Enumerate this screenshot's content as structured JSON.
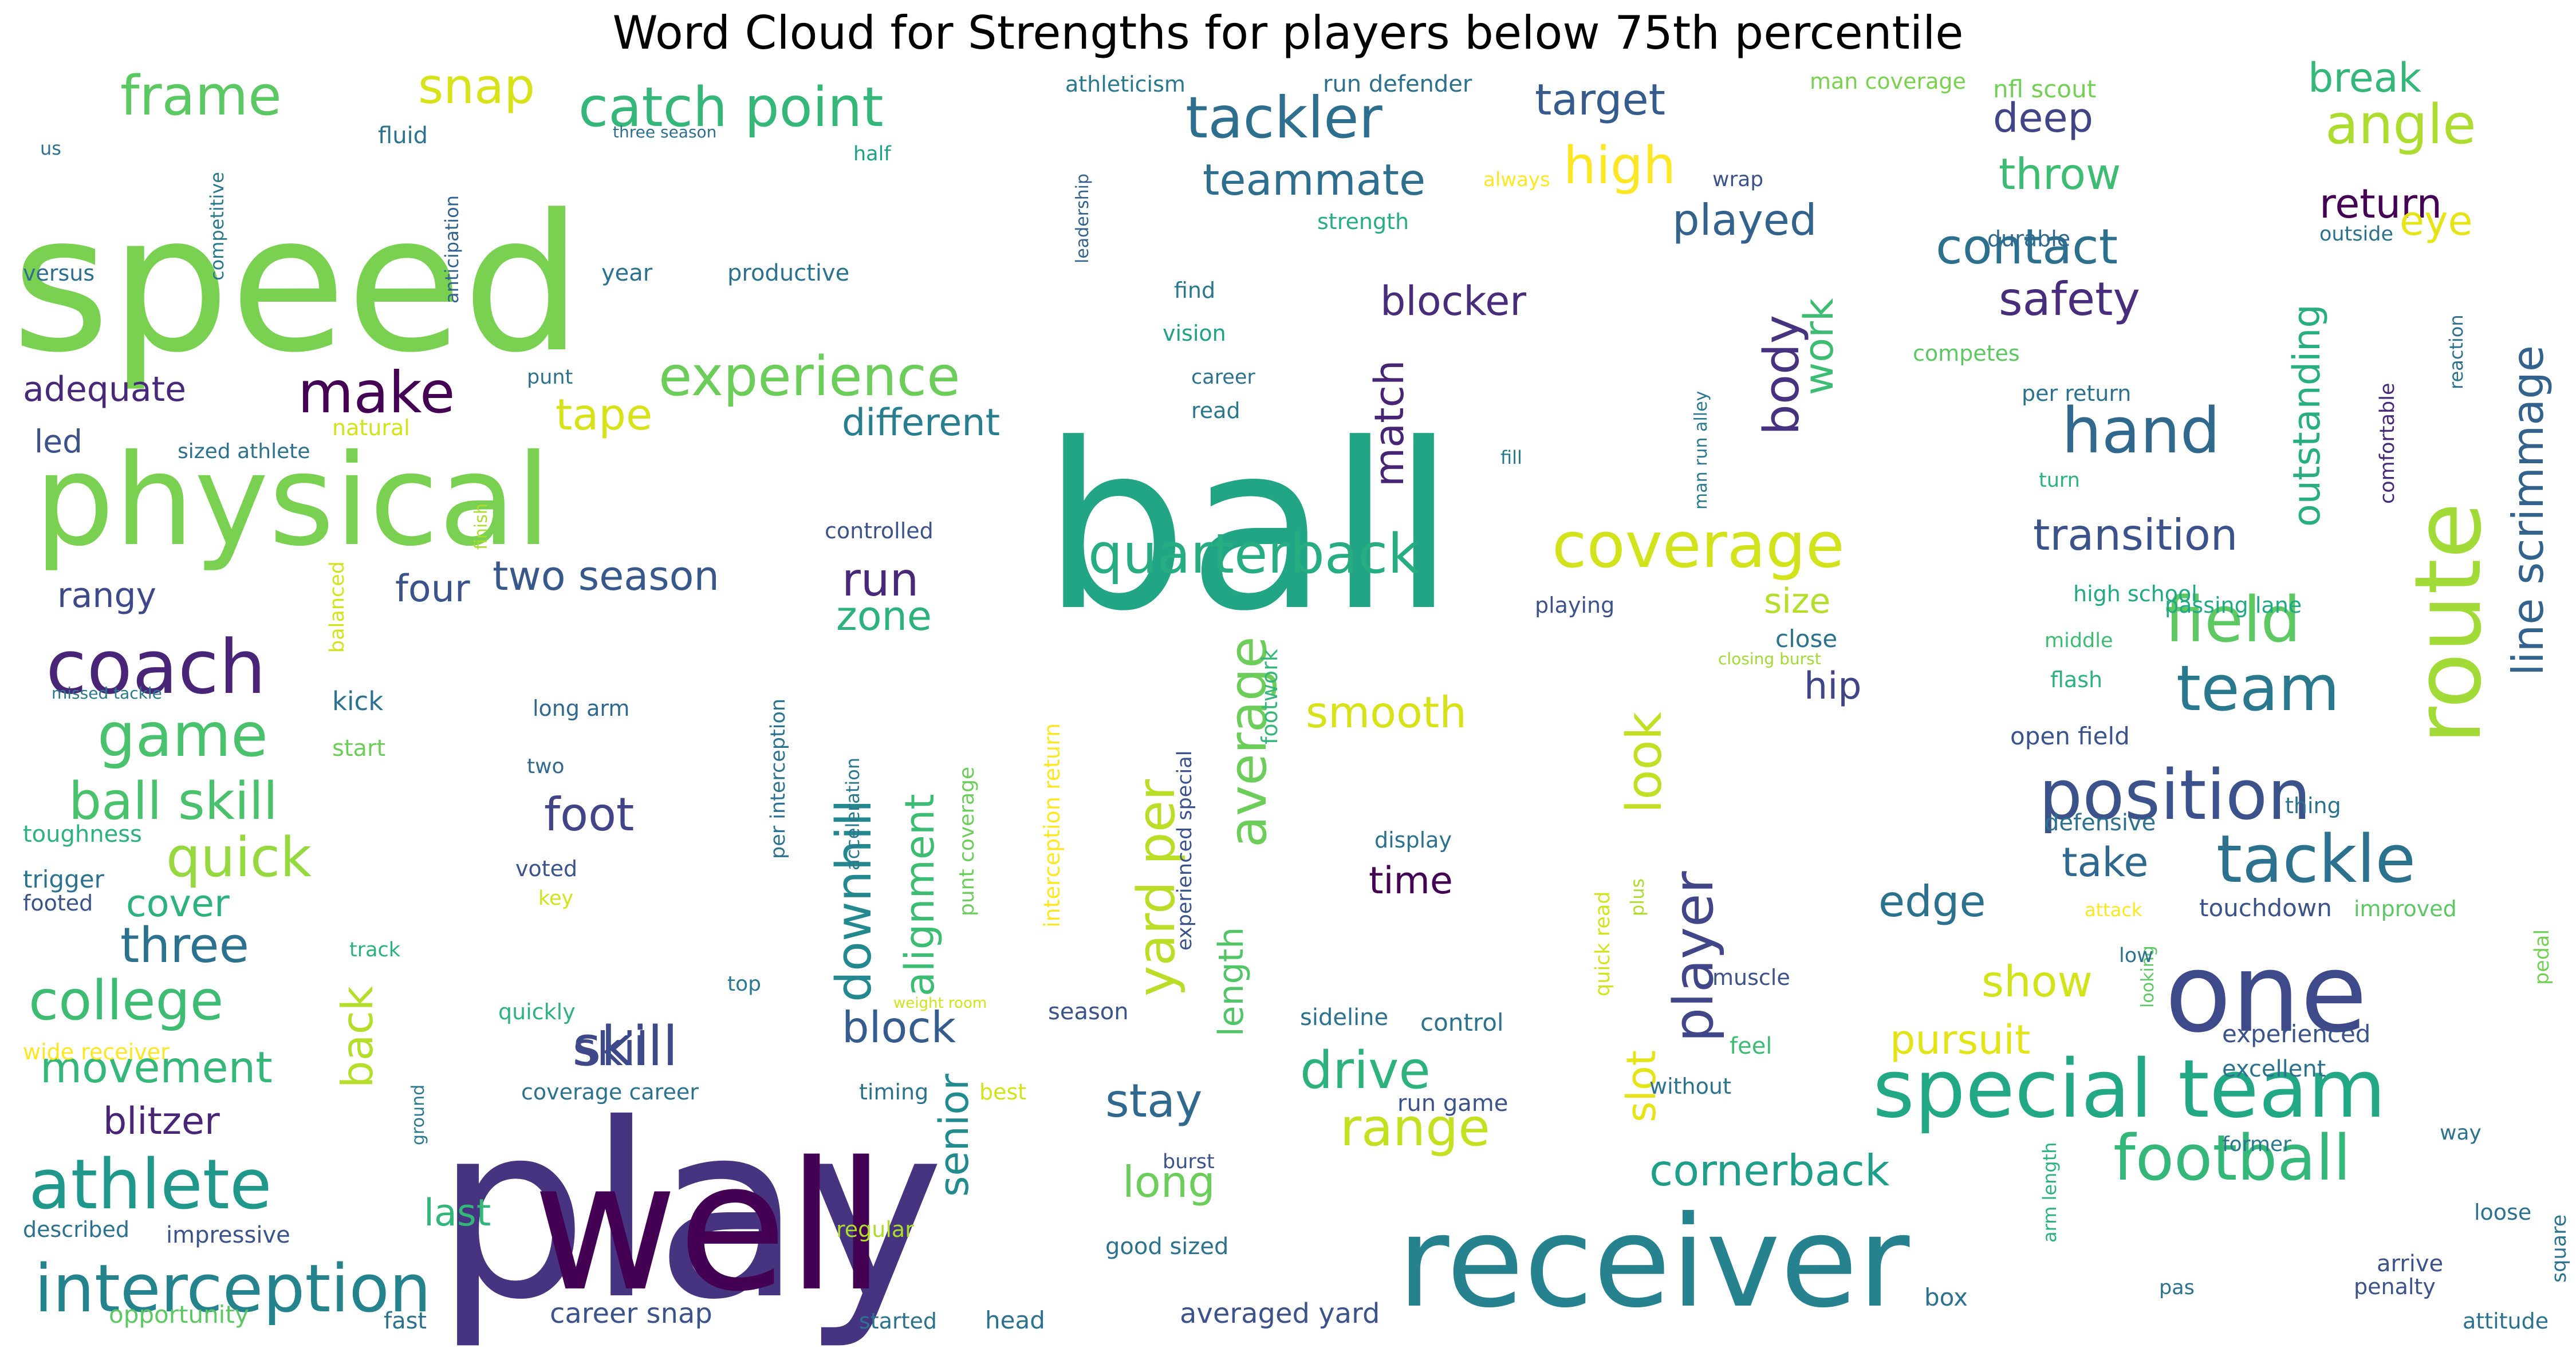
{
  "chart_data": {
    "type": "wordcloud",
    "title": "Word Cloud for Strengths for players below 75th percentile",
    "words": [
      {
        "text": "play",
        "size": 420,
        "color": "#463480"
      },
      {
        "text": "ball",
        "size": 400,
        "color": "#21A585"
      },
      {
        "text": "speed",
        "size": 330,
        "color": "#7AD151"
      },
      {
        "text": "well",
        "size": 310,
        "color": "#440154"
      },
      {
        "text": "receiver",
        "size": 220,
        "color": "#26828E"
      },
      {
        "text": "physical",
        "size": 220,
        "color": "#7AD151"
      },
      {
        "text": "one",
        "size": 190,
        "color": "#3E4A89"
      },
      {
        "text": "route",
        "size": 160,
        "color": "#A2DA37"
      },
      {
        "text": "special team",
        "size": 140,
        "color": "#22A884"
      },
      {
        "text": "coach",
        "size": 130,
        "color": "#482576"
      },
      {
        "text": "athlete",
        "size": 120,
        "color": "#1F988B"
      },
      {
        "text": "interception",
        "size": 115,
        "color": "#25838E"
      },
      {
        "text": "position",
        "size": 120,
        "color": "#3B528B"
      },
      {
        "text": "tackle",
        "size": 115,
        "color": "#2C728E"
      },
      {
        "text": "hand",
        "size": 110,
        "color": "#31688E"
      },
      {
        "text": "team",
        "size": 110,
        "color": "#2A788E"
      },
      {
        "text": "coverage",
        "size": 110,
        "color": "#D2E21B"
      },
      {
        "text": "football",
        "size": 110,
        "color": "#35B779"
      },
      {
        "text": "field",
        "size": 110,
        "color": "#5EC962"
      },
      {
        "text": "game",
        "size": 105,
        "color": "#4AC16D"
      },
      {
        "text": "tackler",
        "size": 100,
        "color": "#2E6E8E"
      },
      {
        "text": "make",
        "size": 100,
        "color": "#440154"
      },
      {
        "text": "quarterback",
        "size": 95,
        "color": "#27AD81"
      },
      {
        "text": "skill",
        "size": 95,
        "color": "#3E4989"
      },
      {
        "text": "experience",
        "size": 95,
        "color": "#6CCD5A"
      },
      {
        "text": "quick",
        "size": 95,
        "color": "#95D840"
      },
      {
        "text": "college",
        "size": 95,
        "color": "#3FBC73"
      },
      {
        "text": "catch point",
        "size": 95,
        "color": "#35B779"
      },
      {
        "text": "frame",
        "size": 95,
        "color": "#5CC863"
      },
      {
        "text": "angle",
        "size": 95,
        "color": "#ADDC30"
      },
      {
        "text": "player",
        "size": 95,
        "color": "#404688"
      },
      {
        "text": "high",
        "size": 90,
        "color": "#FDE725"
      },
      {
        "text": "ball skill",
        "size": 90,
        "color": "#4AC16D"
      },
      {
        "text": "drive",
        "size": 90,
        "color": "#2DB27D"
      },
      {
        "text": "range",
        "size": 90,
        "color": "#C5E021"
      },
      {
        "text": "average",
        "size": 90,
        "color": "#6CCD5A"
      },
      {
        "text": "yard per",
        "size": 90,
        "color": "#BADE28"
      },
      {
        "text": "body",
        "size": 85,
        "color": "#46327E"
      },
      {
        "text": "contact",
        "size": 85,
        "color": "#2D708E"
      },
      {
        "text": "three",
        "size": 85,
        "color": "#2C728E"
      },
      {
        "text": "look",
        "size": 85,
        "color": "#C2DF23"
      },
      {
        "text": "snap",
        "size": 85,
        "color": "#D8E219"
      },
      {
        "text": "downhill",
        "size": 85,
        "color": "#23898E"
      },
      {
        "text": "foot",
        "size": 80,
        "color": "#414487"
      },
      {
        "text": "run",
        "size": 80,
        "color": "#482878"
      },
      {
        "text": "stay",
        "size": 80,
        "color": "#31688E"
      },
      {
        "text": "skill",
        "size": 80,
        "color": "#3E4989"
      },
      {
        "text": "safety",
        "size": 80,
        "color": "#472D7B"
      },
      {
        "text": "target",
        "size": 75,
        "color": "#365C8D"
      },
      {
        "text": "throw",
        "size": 75,
        "color": "#3FBC73"
      },
      {
        "text": "line scrimmage",
        "size": 75,
        "color": "#33638D"
      },
      {
        "text": "teammate",
        "size": 75,
        "color": "#2E6E8E"
      },
      {
        "text": "movement",
        "size": 75,
        "color": "#35B779"
      },
      {
        "text": "smooth",
        "size": 75,
        "color": "#D8E219"
      },
      {
        "text": "long",
        "size": 75,
        "color": "#6CCD5A"
      },
      {
        "text": "show",
        "size": 75,
        "color": "#D2E21B"
      },
      {
        "text": "edge",
        "size": 75,
        "color": "#2C728E"
      },
      {
        "text": "played",
        "size": 75,
        "color": "#33638D"
      },
      {
        "text": "back",
        "size": 75,
        "color": "#B5DE2B"
      },
      {
        "text": "tape",
        "size": 75,
        "color": "#D8E219"
      },
      {
        "text": "transition",
        "size": 75,
        "color": "#3B528B"
      },
      {
        "text": "cornerback",
        "size": 75,
        "color": "#1F9E89"
      },
      {
        "text": "block",
        "size": 75,
        "color": "#365C8D"
      },
      {
        "text": "alignment",
        "size": 70,
        "color": "#3DBC74"
      },
      {
        "text": "blocker",
        "size": 70,
        "color": "#472D7B"
      },
      {
        "text": "senior",
        "size": 70,
        "color": "#238A8D"
      },
      {
        "text": "two season",
        "size": 70,
        "color": "#38588C"
      },
      {
        "text": "zone",
        "size": 70,
        "color": "#2DB27D"
      },
      {
        "text": "pursuit",
        "size": 70,
        "color": "#E2E418"
      },
      {
        "text": "return",
        "size": 70,
        "color": "#440154"
      },
      {
        "text": "take",
        "size": 70,
        "color": "#31688E"
      },
      {
        "text": "deep",
        "size": 70,
        "color": "#414487"
      },
      {
        "text": "break",
        "size": 70,
        "color": "#35B779"
      },
      {
        "text": "match",
        "size": 70,
        "color": "#482475"
      },
      {
        "text": "slot",
        "size": 70,
        "color": "#E5E419"
      },
      {
        "text": "work",
        "size": 70,
        "color": "#3FBC73"
      },
      {
        "text": "eye",
        "size": 70,
        "color": "#E5E419"
      },
      {
        "text": "outstanding",
        "size": 65,
        "color": "#29AF7F"
      },
      {
        "text": "different",
        "size": 65,
        "color": "#287D8E"
      },
      {
        "text": "blitzer",
        "size": 65,
        "color": "#482576"
      },
      {
        "text": "four",
        "size": 65,
        "color": "#3B528B"
      },
      {
        "text": "cover",
        "size": 65,
        "color": "#2DB27D"
      },
      {
        "text": "hip",
        "size": 65,
        "color": "#414487"
      },
      {
        "text": "time",
        "size": 65,
        "color": "#440154"
      },
      {
        "text": "length",
        "size": 60,
        "color": "#52C569"
      },
      {
        "text": "last",
        "size": 65,
        "color": "#32B67A"
      },
      {
        "text": "rangy",
        "size": 60,
        "color": "#3E4989"
      },
      {
        "text": "adequate",
        "size": 60,
        "color": "#482878"
      },
      {
        "text": "size",
        "size": 60,
        "color": "#B5DE2B"
      },
      {
        "text": "led",
        "size": 55,
        "color": "#3B528B"
      },
      {
        "text": "kick",
        "size": 45,
        "color": "#2C728E"
      },
      {
        "text": "start",
        "size": 40,
        "color": "#6CCD5A"
      },
      {
        "text": "athleticism",
        "size": 38,
        "color": "#2A788E"
      },
      {
        "text": "run defender",
        "size": 40,
        "color": "#2D708E"
      },
      {
        "text": "man coverage",
        "size": 38,
        "color": "#7AD151"
      },
      {
        "text": "nfl scout",
        "size": 42,
        "color": "#73D056"
      },
      {
        "text": "fluid",
        "size": 40,
        "color": "#2C728E"
      },
      {
        "text": "three season",
        "size": 28,
        "color": "#2E6E8E"
      },
      {
        "text": "us",
        "size": 32,
        "color": "#2C728E"
      },
      {
        "text": "half",
        "size": 35,
        "color": "#1FA187"
      },
      {
        "text": "always",
        "size": 34,
        "color": "#FDE725"
      },
      {
        "text": "wrap",
        "size": 36,
        "color": "#3B528B"
      },
      {
        "text": "durable",
        "size": 38,
        "color": "#31688E"
      },
      {
        "text": "strength",
        "size": 38,
        "color": "#27AD81"
      },
      {
        "text": "anticipation",
        "size": 32,
        "color": "#33638D"
      },
      {
        "text": "leadership",
        "size": 30,
        "color": "#33638D"
      },
      {
        "text": "competitive",
        "size": 32,
        "color": "#2A788E"
      },
      {
        "text": "versus",
        "size": 38,
        "color": "#2E6E8E"
      },
      {
        "text": "year",
        "size": 40,
        "color": "#2C728E"
      },
      {
        "text": "productive",
        "size": 40,
        "color": "#2C728E"
      },
      {
        "text": "find",
        "size": 38,
        "color": "#2A788E"
      },
      {
        "text": "vision",
        "size": 38,
        "color": "#1FA187"
      },
      {
        "text": "career",
        "size": 35,
        "color": "#2C728E"
      },
      {
        "text": "read",
        "size": 38,
        "color": "#2A788E"
      },
      {
        "text": "punt",
        "size": 35,
        "color": "#2C728E"
      },
      {
        "text": "natural",
        "size": 38,
        "color": "#D2E21B"
      },
      {
        "text": "sized athlete",
        "size": 36,
        "color": "#2C728E"
      },
      {
        "text": "finish",
        "size": 30,
        "color": "#ADDC30"
      },
      {
        "text": "man run alley",
        "size": 30,
        "color": "#2A788E"
      },
      {
        "text": "fill",
        "size": 32,
        "color": "#2A788E"
      },
      {
        "text": "competes",
        "size": 38,
        "color": "#5DC863"
      },
      {
        "text": "per return",
        "size": 38,
        "color": "#2C728E"
      },
      {
        "text": "comfortable",
        "size": 35,
        "color": "#482878"
      },
      {
        "text": "reaction",
        "size": 32,
        "color": "#2D708E"
      },
      {
        "text": "outside",
        "size": 35,
        "color": "#2C728E"
      },
      {
        "text": "turn",
        "size": 35,
        "color": "#2DB27D"
      },
      {
        "text": "controlled",
        "size": 38,
        "color": "#3B528B"
      },
      {
        "text": "balanced",
        "size": 35,
        "color": "#D2E21B"
      },
      {
        "text": "playing",
        "size": 38,
        "color": "#3B528B"
      },
      {
        "text": "high school",
        "size": 38,
        "color": "#22A884"
      },
      {
        "text": "middle",
        "size": 35,
        "color": "#3FBC73"
      },
      {
        "text": "close",
        "size": 42,
        "color": "#2C728E"
      },
      {
        "text": "closing burst",
        "size": 28,
        "color": "#A2DA37"
      },
      {
        "text": "passing lane",
        "size": 38,
        "color": "#22A884"
      },
      {
        "text": "missed tackle",
        "size": 28,
        "color": "#2A788E"
      },
      {
        "text": "long arm",
        "size": 38,
        "color": "#31688E"
      },
      {
        "text": "two",
        "size": 36,
        "color": "#31688E"
      },
      {
        "text": "voted",
        "size": 38,
        "color": "#3B528B"
      },
      {
        "text": "key",
        "size": 35,
        "color": "#D2E21B"
      },
      {
        "text": "display",
        "size": 38,
        "color": "#2C728E"
      },
      {
        "text": "flash",
        "size": 38,
        "color": "#2DB27D"
      },
      {
        "text": "open field",
        "size": 42,
        "color": "#3B528B"
      },
      {
        "text": "thing",
        "size": 38,
        "color": "#2C728E"
      },
      {
        "text": "defensive",
        "size": 40,
        "color": "#2C728E"
      },
      {
        "text": "toughness",
        "size": 40,
        "color": "#2DB27D"
      },
      {
        "text": "trigger",
        "size": 42,
        "color": "#2C728E"
      },
      {
        "text": "footed",
        "size": 38,
        "color": "#3B528B"
      },
      {
        "text": "track",
        "size": 35,
        "color": "#2DB27D"
      },
      {
        "text": "per interception",
        "size": 35,
        "color": "#2C728E"
      },
      {
        "text": "acceleration",
        "size": 32,
        "color": "#2A788E"
      },
      {
        "text": "interception return",
        "size": 38,
        "color": "#FDE725"
      },
      {
        "text": "punt coverage",
        "size": 36,
        "color": "#6CCD5A"
      },
      {
        "text": "experienced special",
        "size": 35,
        "color": "#3B528B"
      },
      {
        "text": "footwork",
        "size": 38,
        "color": "#35B779"
      },
      {
        "text": "quick read",
        "size": 35,
        "color": "#D2E21B"
      },
      {
        "text": "plus",
        "size": 32,
        "color": "#ADDC30"
      },
      {
        "text": "attack",
        "size": 32,
        "color": "#FDE725"
      },
      {
        "text": "touchdown",
        "size": 42,
        "color": "#3B528B"
      },
      {
        "text": "improved",
        "size": 38,
        "color": "#5DC863"
      },
      {
        "text": "pedal",
        "size": 35,
        "color": "#73D056"
      },
      {
        "text": "looking",
        "size": 30,
        "color": "#5DC863"
      },
      {
        "text": "low",
        "size": 35,
        "color": "#2C728E"
      },
      {
        "text": "top",
        "size": 36,
        "color": "#2A788E"
      },
      {
        "text": "muscle",
        "size": 38,
        "color": "#3B528B"
      },
      {
        "text": "quickly",
        "size": 38,
        "color": "#2DB27D"
      },
      {
        "text": "weight room",
        "size": 26,
        "color": "#D2E21B"
      },
      {
        "text": "season",
        "size": 40,
        "color": "#3B528B"
      },
      {
        "text": "wide receiver",
        "size": 38,
        "color": "#FDE725"
      },
      {
        "text": "sideline",
        "size": 40,
        "color": "#2C728E"
      },
      {
        "text": "control",
        "size": 42,
        "color": "#2C728E"
      },
      {
        "text": "feel",
        "size": 40,
        "color": "#3FBC73"
      },
      {
        "text": "experienced",
        "size": 42,
        "color": "#3B528B"
      },
      {
        "text": "excellent",
        "size": 40,
        "color": "#2C728E"
      },
      {
        "text": "coverage career",
        "size": 38,
        "color": "#2C728E"
      },
      {
        "text": "timing",
        "size": 38,
        "color": "#2C728E"
      },
      {
        "text": "best",
        "size": 38,
        "color": "#D2E21B"
      },
      {
        "text": "run game",
        "size": 40,
        "color": "#3B528B"
      },
      {
        "text": "without",
        "size": 38,
        "color": "#2C728E"
      },
      {
        "text": "former",
        "size": 36,
        "color": "#2A788E"
      },
      {
        "text": "way",
        "size": 36,
        "color": "#2C728E"
      },
      {
        "text": "ground",
        "size": 30,
        "color": "#2A788E"
      },
      {
        "text": "burst",
        "size": 35,
        "color": "#3B528B"
      },
      {
        "text": "loose",
        "size": 38,
        "color": "#2C728E"
      },
      {
        "text": "described",
        "size": 38,
        "color": "#2C728E"
      },
      {
        "text": "impressive",
        "size": 40,
        "color": "#3B528B"
      },
      {
        "text": "regular",
        "size": 38,
        "color": "#ADDC30"
      },
      {
        "text": "good sized",
        "size": 40,
        "color": "#2C728E"
      },
      {
        "text": "arm length",
        "size": 32,
        "color": "#2DB27D"
      },
      {
        "text": "arrive",
        "size": 40,
        "color": "#3B528B"
      },
      {
        "text": "square",
        "size": 35,
        "color": "#2C728E"
      },
      {
        "text": "penalty",
        "size": 38,
        "color": "#3B528B"
      },
      {
        "text": "pas",
        "size": 35,
        "color": "#2C728E"
      },
      {
        "text": "opportunity",
        "size": 42,
        "color": "#5DC863"
      },
      {
        "text": "fast",
        "size": 40,
        "color": "#2C728E"
      },
      {
        "text": "career snap",
        "size": 48,
        "color": "#3B528B"
      },
      {
        "text": "started",
        "size": 38,
        "color": "#2C728E"
      },
      {
        "text": "head",
        "size": 42,
        "color": "#2C728E"
      },
      {
        "text": "averaged yard",
        "size": 48,
        "color": "#3B528B"
      },
      {
        "text": "box",
        "size": 42,
        "color": "#2C728E"
      },
      {
        "text": "attitude",
        "size": 38,
        "color": "#2C728E"
      }
    ]
  }
}
